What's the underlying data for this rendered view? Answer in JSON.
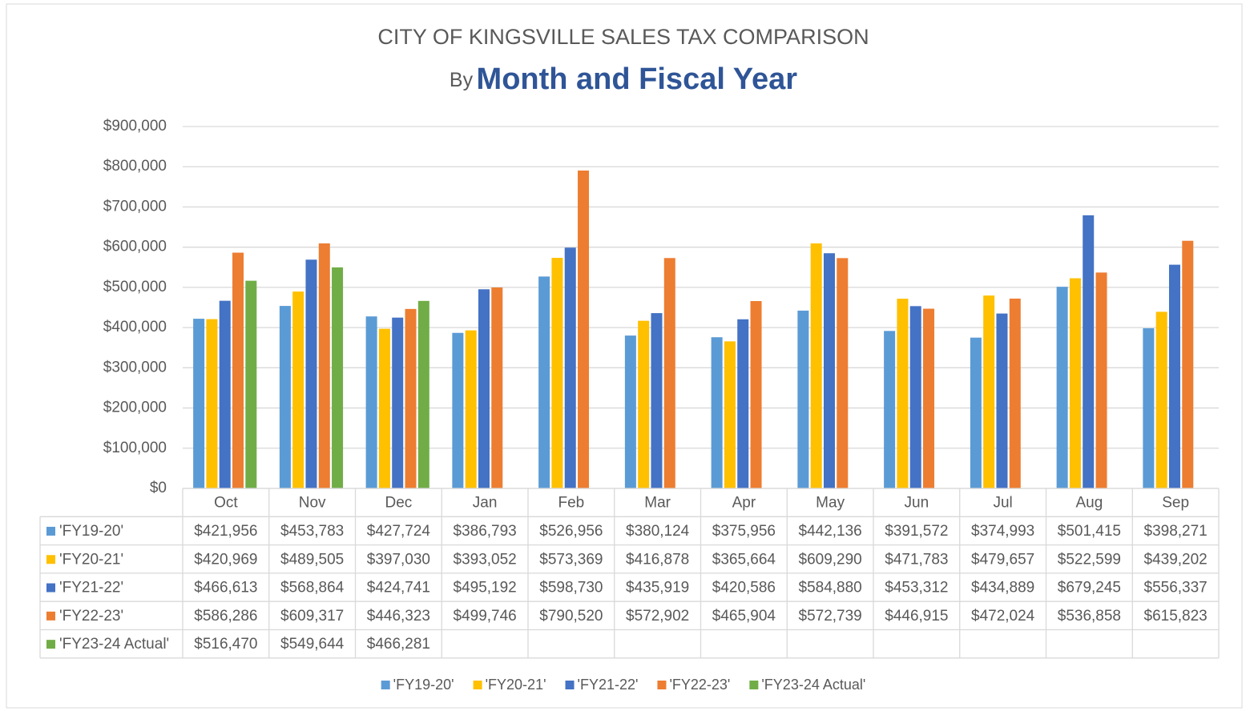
{
  "chart_data": {
    "type": "bar",
    "title": "CITY OF KINGSVILLE SALES TAX COMPARISON",
    "subtitle": {
      "prefix": "By",
      "text": "Month and Fiscal Year"
    },
    "categories": [
      "Oct",
      "Nov",
      "Dec",
      "Jan",
      "Feb",
      "Mar",
      "Apr",
      "May",
      "Jun",
      "Jul",
      "Aug",
      "Sep"
    ],
    "series": [
      {
        "name": "'FY19-20'",
        "color": "#5b9bd5",
        "values": [
          421956,
          453783,
          427724,
          386793,
          526956,
          380124,
          375956,
          442136,
          391572,
          374993,
          501415,
          398271
        ],
        "value_labels": [
          "$421,956",
          "$453,783",
          "$427,724",
          "$386,793",
          "$526,956",
          "$380,124",
          "$375,956",
          "$442,136",
          "$391,572",
          "$374,993",
          "$501,415",
          "$398,271"
        ]
      },
      {
        "name": "'FY20-21'",
        "color": "#ffc000",
        "values": [
          420969,
          489505,
          397030,
          393052,
          573369,
          416878,
          365664,
          609290,
          471783,
          479657,
          522599,
          439202
        ],
        "value_labels": [
          "$420,969",
          "$489,505",
          "$397,030",
          "$393,052",
          "$573,369",
          "$416,878",
          "$365,664",
          "$609,290",
          "$471,783",
          "$479,657",
          "$522,599",
          "$439,202"
        ]
      },
      {
        "name": "'FY21-22'",
        "color": "#4472c4",
        "values": [
          466613,
          568864,
          424741,
          495192,
          598730,
          435919,
          420586,
          584880,
          453312,
          434889,
          679245,
          556337
        ],
        "value_labels": [
          "$466,613",
          "$568,864",
          "$424,741",
          "$495,192",
          "$598,730",
          "$435,919",
          "$420,586",
          "$584,880",
          "$453,312",
          "$434,889",
          "$679,245",
          "$556,337"
        ]
      },
      {
        "name": "'FY22-23'",
        "color": "#ed7d31",
        "values": [
          586286,
          609317,
          446323,
          499746,
          790520,
          572902,
          465904,
          572739,
          446915,
          472024,
          536858,
          615823
        ],
        "value_labels": [
          "$586,286",
          "$609,317",
          "$446,323",
          "$499,746",
          "$790,520",
          "$572,902",
          "$465,904",
          "$572,739",
          "$446,915",
          "$472,024",
          "$536,858",
          "$615,823"
        ]
      },
      {
        "name": "'FY23-24 Actual'",
        "color": "#70ad47",
        "values": [
          516470,
          549644,
          466281,
          null,
          null,
          null,
          null,
          null,
          null,
          null,
          null,
          null
        ],
        "value_labels": [
          "$516,470",
          "$549,644",
          "$466,281",
          null,
          null,
          null,
          null,
          null,
          null,
          null,
          null,
          null
        ]
      }
    ],
    "ylim": [
      0,
      900000
    ],
    "yticks": [
      {
        "value": 0,
        "label": "$0"
      },
      {
        "value": 100000,
        "label": "$100,000"
      },
      {
        "value": 200000,
        "label": "$200,000"
      },
      {
        "value": 300000,
        "label": "$300,000"
      },
      {
        "value": 400000,
        "label": "$400,000"
      },
      {
        "value": 500000,
        "label": "$500,000"
      },
      {
        "value": 600000,
        "label": "$600,000"
      },
      {
        "value": 700000,
        "label": "$700,000"
      },
      {
        "value": 800000,
        "label": "$800,000"
      },
      {
        "value": 900000,
        "label": "$900,000"
      }
    ],
    "grid": true,
    "legend": "bottom"
  }
}
